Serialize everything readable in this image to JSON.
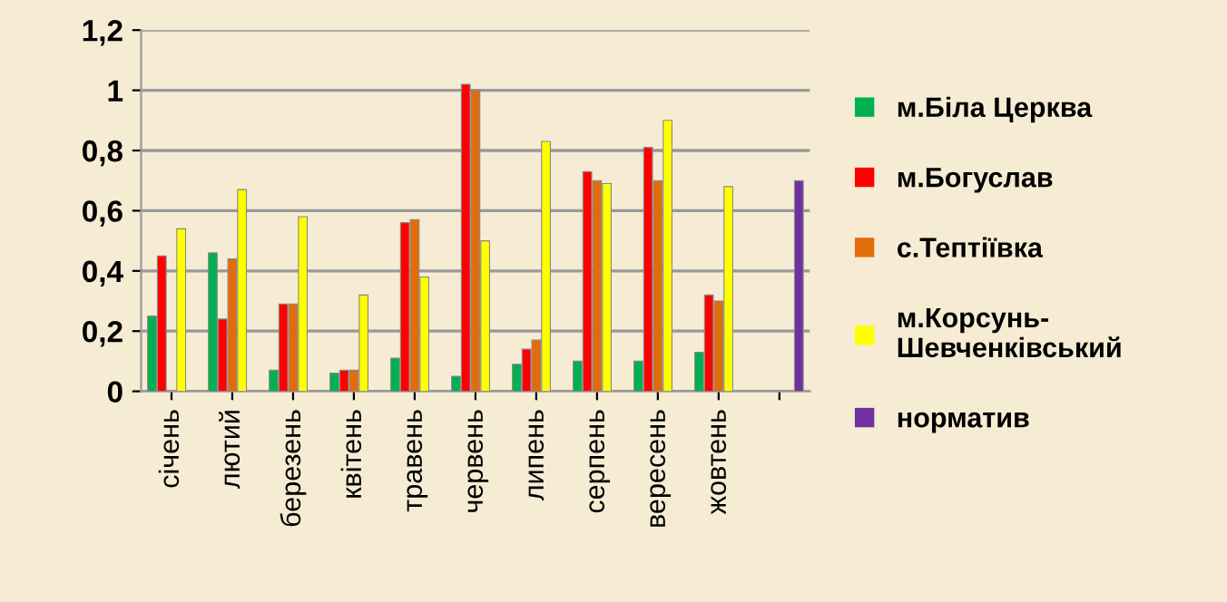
{
  "chart_data": {
    "type": "bar",
    "categories": [
      "січень",
      "лютий",
      "березень",
      "квітень",
      "травень",
      "червень",
      "липень",
      "серпень",
      "вересень",
      "жовтень",
      null
    ],
    "series": [
      {
        "name": "м.Біла Церква",
        "color": "#00b050",
        "values": [
          0.25,
          0.46,
          0.07,
          0.06,
          0.11,
          0.05,
          0.09,
          0.1,
          0.1,
          0.13,
          null
        ]
      },
      {
        "name": "м.Богуслав",
        "color": "#ff0000",
        "values": [
          0.45,
          0.24,
          0.29,
          0.07,
          0.56,
          1.02,
          0.14,
          0.73,
          0.81,
          0.32,
          null
        ]
      },
      {
        "name": "с.Тептіївка",
        "color": "#e36c0a",
        "values": [
          null,
          0.44,
          0.29,
          0.07,
          0.57,
          1.0,
          0.17,
          0.7,
          0.7,
          0.3,
          null
        ]
      },
      {
        "name": "м.Корсунь-\nШевченківський",
        "color": "#ffff00",
        "values": [
          0.54,
          0.67,
          0.58,
          0.32,
          0.38,
          0.5,
          0.83,
          0.69,
          0.9,
          0.68,
          null
        ]
      },
      {
        "name": "норматив",
        "color": "#7030a0",
        "values": [
          null,
          null,
          null,
          null,
          null,
          null,
          null,
          null,
          null,
          null,
          0.7
        ]
      }
    ],
    "ylim": [
      0,
      1.2
    ],
    "yticks": [
      0,
      {
        "value": 0.2,
        "label": "0,2"
      },
      {
        "value": 0.4,
        "label": "0,4"
      },
      {
        "value": 0.6,
        "label": "0,6"
      },
      {
        "value": 0.8,
        "label": "0,8"
      },
      1,
      {
        "value": 1.2,
        "label": "1,2"
      }
    ],
    "grid": "y",
    "legend": "right"
  }
}
